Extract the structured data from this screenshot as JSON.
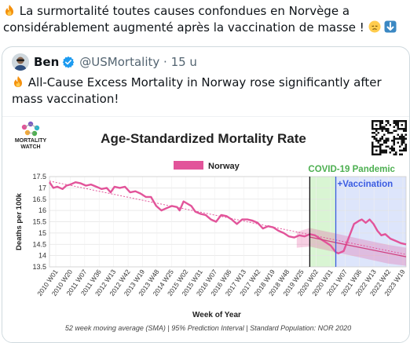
{
  "tweet": {
    "text": "La surmortalité toutes causes confondues en Norvège a considérablement augmenté après la vaccination de masse !",
    "lead_emoji": "fire-icon",
    "trailing_emojis": [
      "disappointed-face-icon",
      "down-arrow-icon"
    ]
  },
  "quoted": {
    "author_name": "Ben",
    "handle": "@USMortality",
    "time": "15 u",
    "text": "All-Cause Excess Mortality in Norway rose significantly after mass vaccination!",
    "lead_emoji": "fire-icon"
  },
  "colors": {
    "accent_blue": "#1d9bf0",
    "series_pink": "#e2549a",
    "pandemic_green": "#4caf50",
    "vaccination_blue": "#3b5ce0"
  },
  "chart_data": {
    "type": "line",
    "brand": [
      "MORTALITY",
      "WATCH"
    ],
    "title": "Age-Standardized Mortality Rate",
    "xlabel": "Week of Year",
    "ylabel": "Deaths per 100k",
    "ylim": [
      13.5,
      17.5
    ],
    "yticks": [
      "17.5",
      "17",
      "16.5",
      "16",
      "15.5",
      "15",
      "14.5",
      "14",
      "13.5"
    ],
    "xticks": [
      "2010 W01",
      "2010 W20",
      "2011 W07",
      "2011 W36",
      "2012 W13",
      "2012 W42",
      "2013 W19",
      "2013 W48",
      "2014 W25",
      "2015 W02",
      "2015 W31",
      "2016 W07",
      "2016 W36",
      "2017 W13",
      "2017 W42",
      "2018 W19",
      "2018 W48",
      "2019 W25",
      "2020 W02",
      "2020 W31",
      "2021 W07",
      "2021 W36",
      "2022 W13",
      "2022 W42",
      "2023 W19"
    ],
    "legend": "Norway",
    "legend_position": "top-center",
    "grid": true,
    "annotations": {
      "pandemic": "COVID-19 Pandemic",
      "vaccination": "+Vaccination"
    },
    "series": [
      {
        "name": "Norway",
        "x": [
          2010.0,
          2010.15,
          2010.3,
          2010.5,
          2010.65,
          2010.8,
          2011.0,
          2011.2,
          2011.4,
          2011.6,
          2011.8,
          2012.0,
          2012.2,
          2012.35,
          2012.5,
          2012.7,
          2012.9,
          2013.1,
          2013.3,
          2013.5,
          2013.7,
          2013.9,
          2014.1,
          2014.3,
          2014.5,
          2014.7,
          2014.9,
          2015.0,
          2015.15,
          2015.3,
          2015.45,
          2015.6,
          2015.8,
          2016.0,
          2016.2,
          2016.4,
          2016.6,
          2016.8,
          2017.0,
          2017.2,
          2017.4,
          2017.6,
          2017.8,
          2018.0,
          2018.2,
          2018.4,
          2018.6,
          2018.8,
          2019.0,
          2019.2,
          2019.4,
          2019.6,
          2019.8,
          2020.0,
          2020.2,
          2020.4,
          2020.6,
          2020.8,
          2021.0,
          2021.1,
          2021.3,
          2021.5,
          2021.7,
          2021.9,
          2022.0,
          2022.15,
          2022.3,
          2022.45,
          2022.6,
          2022.75,
          2022.9,
          2023.1,
          2023.3,
          2023.5,
          2023.7
        ],
        "values": [
          17.25,
          17.0,
          17.05,
          16.95,
          17.1,
          17.15,
          17.25,
          17.2,
          17.1,
          17.15,
          17.05,
          16.95,
          17.0,
          16.8,
          17.05,
          17.0,
          17.05,
          16.8,
          16.85,
          16.75,
          16.6,
          16.6,
          16.2,
          16.0,
          16.1,
          16.2,
          16.15,
          16.0,
          16.4,
          16.3,
          16.2,
          15.95,
          15.85,
          15.8,
          15.6,
          15.5,
          15.8,
          15.75,
          15.6,
          15.4,
          15.6,
          15.6,
          15.55,
          15.45,
          15.2,
          15.3,
          15.25,
          15.1,
          15.0,
          14.85,
          14.8,
          14.9,
          14.85,
          14.95,
          14.9,
          14.75,
          14.6,
          14.45,
          14.15,
          14.1,
          14.2,
          14.8,
          15.4,
          15.55,
          15.6,
          15.45,
          15.6,
          15.4,
          15.1,
          14.9,
          14.95,
          14.75,
          14.65,
          14.55,
          14.5
        ]
      },
      {
        "name": "",
        "x": [
          2010.0,
          2023.7
        ],
        "values": [
          17.3,
          14.05
        ]
      },
      {
        "name": "",
        "x": [
          2020.0,
          2021.1,
          2023.7
        ],
        "values": [
          14.82,
          14.55,
          13.95
        ]
      }
    ],
    "shaded_periods": [
      {
        "label": "COVID-19 Pandemic",
        "x_start": 2020.0,
        "x_end": 2021.0
      },
      {
        "label": "+Vaccination",
        "x_start": 2021.0,
        "x_end": 2023.7
      }
    ],
    "prediction_interval": {
      "x": [
        2019.5,
        2020.0,
        2021.0,
        2022.0,
        2023.0,
        2023.7
      ],
      "upper": [
        15.05,
        15.22,
        14.98,
        14.72,
        14.48,
        14.35
      ],
      "lower": [
        14.35,
        14.4,
        14.15,
        13.9,
        13.65,
        13.55
      ]
    },
    "footnote": "52 week moving average (SMA) | 95% Prediction Interval | Standard Population: NOR 2020"
  }
}
